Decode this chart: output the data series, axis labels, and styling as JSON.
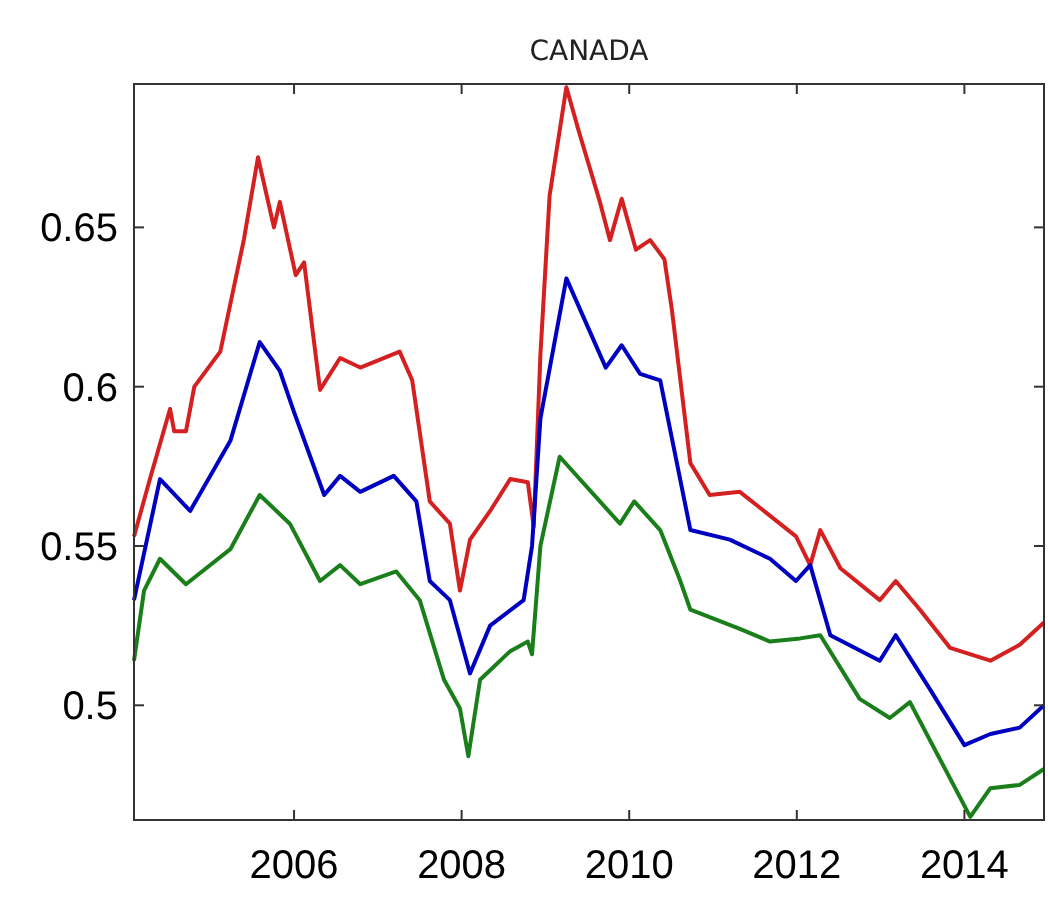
{
  "chart_data": {
    "type": "line",
    "title": "CANADA",
    "xlim": [
      2004.09,
      2014.95
    ],
    "ylim": [
      0.464,
      0.695
    ],
    "xticks": [
      2006,
      2008,
      2010,
      2012,
      2014
    ],
    "yticks": [
      0.5,
      0.55,
      0.6,
      0.65
    ],
    "grid": false,
    "marker": "none",
    "line_style": "solid",
    "series": [
      {
        "color": "#d42020",
        "x": [
          2004.09,
          2004.28,
          2004.52,
          2004.57,
          2004.71,
          2004.81,
          2005.12,
          2005.4,
          2005.57,
          2005.76,
          2005.83,
          2006.02,
          2006.12,
          2006.31,
          2006.55,
          2006.79,
          2007.26,
          2007.41,
          2007.62,
          2007.86,
          2007.98,
          2008.1,
          2008.34,
          2008.58,
          2008.79,
          2008.86,
          2008.94,
          2009.05,
          2009.25,
          2009.4,
          2009.65,
          2009.77,
          2009.91,
          2010.08,
          2010.25,
          2010.42,
          2010.51,
          2010.73,
          2010.96,
          2011.32,
          2011.56,
          2011.99,
          2012.16,
          2012.28,
          2012.52,
          2012.99,
          2013.18,
          2013.47,
          2013.83,
          2014.31,
          2014.66,
          2014.95
        ],
        "values": [
          0.553,
          0.571,
          0.593,
          0.586,
          0.586,
          0.6,
          0.611,
          0.646,
          0.672,
          0.65,
          0.658,
          0.635,
          0.639,
          0.599,
          0.609,
          0.606,
          0.611,
          0.602,
          0.564,
          0.557,
          0.536,
          0.552,
          0.561,
          0.571,
          0.57,
          0.556,
          0.61,
          0.66,
          0.694,
          0.68,
          0.658,
          0.646,
          0.659,
          0.643,
          0.646,
          0.64,
          0.624,
          0.576,
          0.566,
          0.567,
          0.562,
          0.553,
          0.544,
          0.555,
          0.543,
          0.533,
          0.539,
          0.53,
          0.518,
          0.514,
          0.519,
          0.526
        ]
      },
      {
        "color": "#0000c0",
        "x": [
          2004.09,
          2004.4,
          2004.76,
          2005.24,
          2005.59,
          2005.83,
          2006.0,
          2006.36,
          2006.55,
          2006.79,
          2007.19,
          2007.46,
          2007.62,
          2007.86,
          2008.1,
          2008.34,
          2008.74,
          2008.84,
          2008.94,
          2009.25,
          2009.72,
          2009.91,
          2010.13,
          2010.37,
          2010.73,
          2011.2,
          2011.68,
          2011.99,
          2012.16,
          2012.4,
          2012.99,
          2013.18,
          2013.59,
          2014.0,
          2014.31,
          2014.66,
          2014.95
        ],
        "values": [
          0.533,
          0.571,
          0.561,
          0.583,
          0.614,
          0.605,
          0.592,
          0.566,
          0.572,
          0.567,
          0.572,
          0.564,
          0.539,
          0.533,
          0.51,
          0.525,
          0.533,
          0.55,
          0.59,
          0.634,
          0.606,
          0.613,
          0.604,
          0.602,
          0.555,
          0.552,
          0.546,
          0.539,
          0.544,
          0.522,
          0.514,
          0.522,
          0.505,
          0.4875,
          0.491,
          0.493,
          0.5
        ]
      },
      {
        "color": "#1a7f1a",
        "x": [
          2004.09,
          2004.21,
          2004.4,
          2004.71,
          2005.24,
          2005.59,
          2005.95,
          2006.31,
          2006.55,
          2006.79,
          2007.22,
          2007.5,
          2007.79,
          2007.98,
          2008.08,
          2008.22,
          2008.58,
          2008.79,
          2008.84,
          2008.94,
          2009.17,
          2009.65,
          2009.89,
          2010.06,
          2010.37,
          2010.61,
          2010.73,
          2011.32,
          2011.68,
          2012.04,
          2012.28,
          2012.75,
          2013.11,
          2013.35,
          2013.71,
          2014.07,
          2014.31,
          2014.66,
          2014.95
        ],
        "values": [
          0.514,
          0.536,
          0.546,
          0.538,
          0.549,
          0.566,
          0.557,
          0.539,
          0.544,
          0.538,
          0.542,
          0.533,
          0.508,
          0.499,
          0.484,
          0.508,
          0.517,
          0.52,
          0.516,
          0.55,
          0.578,
          0.564,
          0.557,
          0.564,
          0.555,
          0.539,
          0.53,
          0.524,
          0.52,
          0.521,
          0.522,
          0.502,
          0.496,
          0.501,
          0.483,
          0.465,
          0.474,
          0.475,
          0.48
        ]
      }
    ]
  }
}
